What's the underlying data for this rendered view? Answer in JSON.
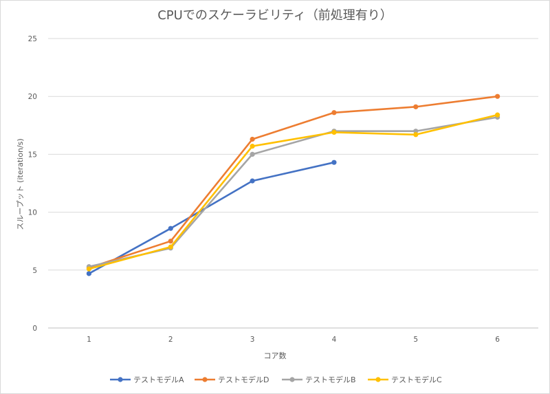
{
  "chart_data": {
    "type": "line",
    "title": "CPUでのスケーラビリティ（前処理有り）",
    "xlabel": "コア数",
    "ylabel": "スループット (iteration/s)",
    "x": [
      1,
      2,
      3,
      4,
      5,
      6
    ],
    "x_tick_labels": [
      "1",
      "2",
      "3",
      "4",
      "5",
      "6"
    ],
    "ylim": [
      0,
      25
    ],
    "y_ticks": [
      0,
      5,
      10,
      15,
      20,
      25
    ],
    "y_tick_labels": [
      "0",
      "5",
      "10",
      "15",
      "20",
      "25"
    ],
    "grid": "horizontal",
    "legend_position": "bottom",
    "series": [
      {
        "name": "テストモデルA",
        "color": "#4472c4",
        "values": [
          4.7,
          8.6,
          12.7,
          14.3,
          null,
          null
        ]
      },
      {
        "name": "テストモデルD",
        "color": "#ed7d31",
        "values": [
          5.2,
          7.5,
          16.3,
          18.6,
          19.1,
          20.0
        ]
      },
      {
        "name": "テストモデルB",
        "color": "#a5a5a5",
        "values": [
          5.3,
          6.9,
          15.0,
          17.0,
          17.0,
          18.2
        ]
      },
      {
        "name": "テストモデルC",
        "color": "#ffc000",
        "values": [
          5.1,
          7.0,
          15.7,
          16.9,
          16.7,
          18.4
        ]
      }
    ]
  }
}
